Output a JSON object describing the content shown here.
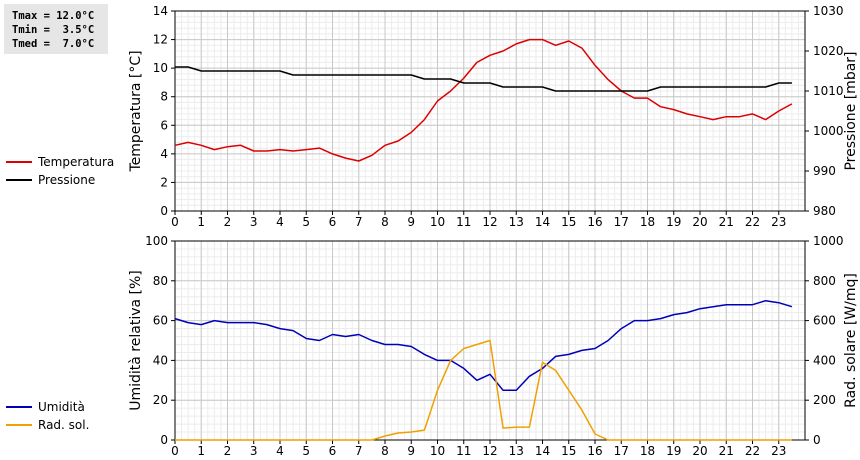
{
  "stats": {
    "tmax": "Tmax = 12.0°C",
    "tmin": "Tmin =  3.5°C",
    "tmed": "Tmed =  7.0°C"
  },
  "chart_data": [
    {
      "type": "line",
      "xlim": [
        0,
        24
      ],
      "x_ticks": [
        0,
        1,
        2,
        3,
        4,
        5,
        6,
        7,
        8,
        9,
        10,
        11,
        12,
        13,
        14,
        15,
        16,
        17,
        18,
        19,
        20,
        21,
        22,
        23
      ],
      "ylabel": "Temperatura [°C]",
      "ylim": [
        0,
        14
      ],
      "y_ticks": [
        0,
        2,
        4,
        6,
        8,
        10,
        12,
        14
      ],
      "y2label": "Pressione [mbar]",
      "y2lim": [
        980,
        1030
      ],
      "y2_ticks": [
        980,
        990,
        1000,
        1010,
        1020,
        1030
      ],
      "grid": true,
      "legend_position": "left",
      "series": [
        {
          "name": "Temperatura",
          "axis": "left",
          "color": "#dd0000",
          "x": [
            0,
            0.5,
            1,
            1.5,
            2,
            2.5,
            3,
            3.5,
            4,
            4.5,
            5,
            5.5,
            6,
            6.5,
            7,
            7.5,
            8,
            8.5,
            9,
            9.5,
            10,
            10.5,
            11,
            11.5,
            12,
            12.5,
            13,
            13.5,
            14,
            14.5,
            15,
            15.5,
            16,
            16.5,
            17,
            17.5,
            18,
            18.5,
            19,
            19.5,
            20,
            20.5,
            21,
            21.5,
            22,
            22.5,
            23,
            23.5
          ],
          "values": [
            4.6,
            4.8,
            4.6,
            4.3,
            4.5,
            4.6,
            4.2,
            4.2,
            4.3,
            4.2,
            4.3,
            4.4,
            4.0,
            3.7,
            3.5,
            3.9,
            4.6,
            4.9,
            5.5,
            6.4,
            7.7,
            8.4,
            9.3,
            10.4,
            10.9,
            11.2,
            11.7,
            12.0,
            12.0,
            11.6,
            11.9,
            11.4,
            10.2,
            9.2,
            8.4,
            7.9,
            7.9,
            7.3,
            7.1,
            6.8,
            6.6,
            6.4,
            6.6,
            6.6,
            6.8,
            6.4,
            7.0,
            7.5
          ]
        },
        {
          "name": "Pressione",
          "axis": "right",
          "color": "#000000",
          "x": [
            0,
            0.5,
            1,
            1.5,
            2,
            2.5,
            3,
            3.5,
            4,
            4.5,
            5,
            5.5,
            6,
            6.5,
            7,
            7.5,
            8,
            8.5,
            9,
            9.5,
            10,
            10.5,
            11,
            11.5,
            12,
            12.5,
            13,
            13.5,
            14,
            14.5,
            15,
            15.5,
            16,
            16.5,
            17,
            17.5,
            18,
            18.5,
            19,
            19.5,
            20,
            20.5,
            21,
            21.5,
            22,
            22.5,
            23,
            23.5
          ],
          "values": [
            1016,
            1016,
            1015,
            1015,
            1015,
            1015,
            1015,
            1015,
            1015,
            1014,
            1014,
            1014,
            1014,
            1014,
            1014,
            1014,
            1014,
            1014,
            1014,
            1013,
            1013,
            1013,
            1012,
            1012,
            1012,
            1011,
            1011,
            1011,
            1011,
            1010,
            1010,
            1010,
            1010,
            1010,
            1010,
            1010,
            1010,
            1011,
            1011,
            1011,
            1011,
            1011,
            1011,
            1011,
            1011,
            1011,
            1012,
            1012
          ]
        }
      ]
    },
    {
      "type": "line",
      "xlim": [
        0,
        24
      ],
      "x_ticks": [
        0,
        1,
        2,
        3,
        4,
        5,
        6,
        7,
        8,
        9,
        10,
        11,
        12,
        13,
        14,
        15,
        16,
        17,
        18,
        19,
        20,
        21,
        22,
        23
      ],
      "ylabel": "Umidità relativa [%]",
      "ylim": [
        0,
        100
      ],
      "y_ticks": [
        0,
        20,
        40,
        60,
        80,
        100
      ],
      "y2label": "Rad. solare [W/mq]",
      "y2lim": [
        0,
        1000
      ],
      "y2_ticks": [
        0,
        200,
        400,
        600,
        800,
        1000
      ],
      "grid": true,
      "legend_position": "left",
      "series": [
        {
          "name": "Umidità",
          "axis": "left",
          "color": "#0000bb",
          "x": [
            0,
            0.5,
            1,
            1.5,
            2,
            2.5,
            3,
            3.5,
            4,
            4.5,
            5,
            5.5,
            6,
            6.5,
            7,
            7.5,
            8,
            8.5,
            9,
            9.5,
            10,
            10.5,
            11,
            11.5,
            12,
            12.5,
            13,
            13.5,
            14,
            14.5,
            15,
            15.5,
            16,
            16.5,
            17,
            17.5,
            18,
            18.5,
            19,
            19.5,
            20,
            20.5,
            21,
            21.5,
            22,
            22.5,
            23,
            23.5
          ],
          "values": [
            61,
            59,
            58,
            60,
            59,
            59,
            59,
            58,
            56,
            55,
            51,
            50,
            53,
            52,
            53,
            50,
            48,
            48,
            47,
            43,
            40,
            40,
            36,
            30,
            33,
            25,
            25,
            32,
            36,
            42,
            43,
            45,
            46,
            50,
            56,
            60,
            60,
            61,
            63,
            64,
            66,
            67,
            68,
            68,
            68,
            70,
            69,
            67
          ]
        },
        {
          "name": "Rad. sol.",
          "axis": "right",
          "color": "#f0a000",
          "x": [
            0,
            1,
            2,
            3,
            4,
            5,
            6,
            7,
            7.5,
            8,
            8.5,
            9,
            9.5,
            10,
            10.5,
            11,
            11.5,
            12,
            12.5,
            13,
            13.5,
            14,
            14.5,
            15,
            15.5,
            16,
            16.5,
            17,
            18,
            19,
            20,
            21,
            22,
            23,
            23.5
          ],
          "values": [
            0,
            0,
            0,
            0,
            0,
            0,
            0,
            0,
            0,
            20,
            35,
            40,
            50,
            250,
            400,
            460,
            480,
            500,
            60,
            65,
            65,
            390,
            350,
            250,
            150,
            30,
            0,
            0,
            0,
            0,
            0,
            0,
            0,
            0,
            0
          ]
        }
      ]
    }
  ]
}
